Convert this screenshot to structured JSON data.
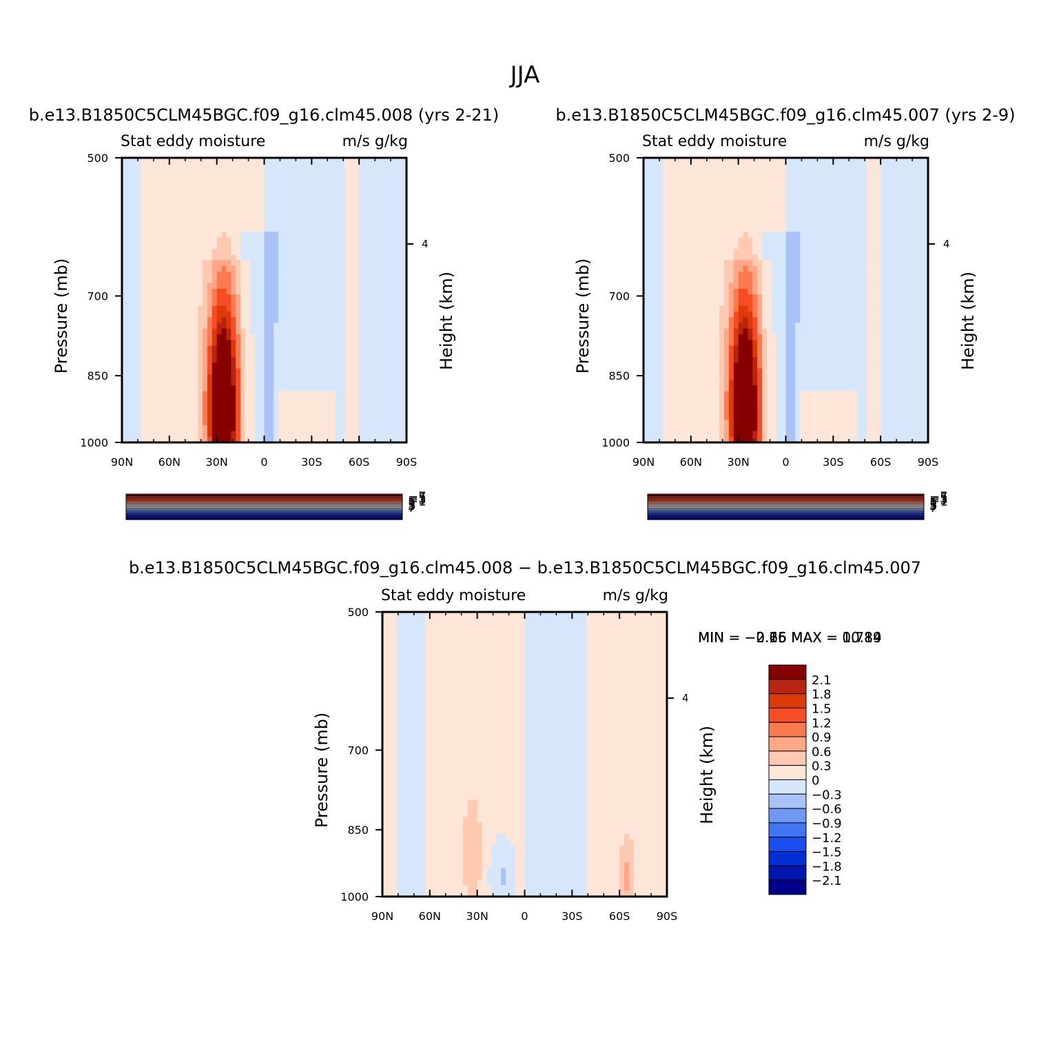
{
  "page_title": "JJA",
  "colors": {
    "diverging_palette": [
      "#00008b",
      "#0016b0",
      "#0030d4",
      "#1a4ef0",
      "#3f74f2",
      "#7099f4",
      "#a9c3f8",
      "#d7e7fb",
      "#fde6d8",
      "#fdcab1",
      "#fca788",
      "#fb7a50",
      "#f64d26",
      "#dd3a0a",
      "#b82410",
      "#870000"
    ]
  },
  "chart_data": [
    {
      "type": "heatmap",
      "title": "b.e13.B1850C5CLM45BGC.f09_g16.clm45.008 (yrs 2-21)",
      "subtitle_left": "Stat eddy moisture",
      "subtitle_right": "m/s g/kg",
      "ylabel": "Pressure (mb)",
      "ylabel_right": "Height (km)",
      "x_ticks": [
        "90N",
        "60N",
        "30N",
        "0",
        "30S",
        "60S",
        "90S"
      ],
      "y_ticks": [
        "500",
        "700",
        "850",
        "1000"
      ],
      "right_ticks": [
        "4"
      ],
      "ylim": [
        1000,
        500
      ],
      "min_text": "MIN =   −2.26   MAX =   10.89",
      "min": -2.26,
      "max": 10.89,
      "colorbar_labels": [
        "−7",
        "−5",
        "−3",
        "−1",
        "1",
        "3",
        "5",
        "7"
      ],
      "levels": [
        -7,
        -6,
        -5,
        -4,
        -3,
        -2,
        -1,
        0,
        1,
        2,
        3,
        4,
        5,
        6,
        7
      ],
      "core": {
        "lat_center": 26,
        "max_value": 10.89,
        "pressure_peak": 920
      }
    },
    {
      "type": "heatmap",
      "title": "b.e13.B1850C5CLM45BGC.f09_g16.clm45.007 (yrs 2-9)",
      "subtitle_left": "Stat eddy moisture",
      "subtitle_right": "m/s g/kg",
      "ylabel": "Pressure (mb)",
      "ylabel_right": "Height (km)",
      "x_ticks": [
        "90N",
        "60N",
        "30N",
        "0",
        "30S",
        "60S",
        "90S"
      ],
      "y_ticks": [
        "500",
        "700",
        "850",
        "1000"
      ],
      "right_ticks": [
        "4"
      ],
      "ylim": [
        1000,
        500
      ],
      "min_text": "MIN =   −2.16   MAX =   10.84",
      "min": -2.16,
      "max": 10.84,
      "colorbar_labels": [
        "−7",
        "−5",
        "−3",
        "−1",
        "1",
        "3",
        "5",
        "7"
      ],
      "levels": [
        -7,
        -6,
        -5,
        -4,
        -3,
        -2,
        -1,
        0,
        1,
        2,
        3,
        4,
        5,
        6,
        7
      ],
      "core": {
        "lat_center": 26,
        "max_value": 10.84,
        "pressure_peak": 920
      }
    },
    {
      "type": "heatmap",
      "title": "b.e13.B1850C5CLM45BGC.f09_g16.clm45.008 − b.e13.B1850C5CLM45BGC.f09_g16.clm45.007",
      "subtitle_left": "Stat eddy moisture",
      "subtitle_right": "m/s g/kg",
      "ylabel": "Pressure (mb)",
      "ylabel_right": "Height (km)",
      "x_ticks": [
        "90N",
        "60N",
        "30N",
        "0",
        "30S",
        "60S",
        "90S"
      ],
      "y_ticks": [
        "500",
        "700",
        "850",
        "1000"
      ],
      "right_ticks": [
        "4"
      ],
      "ylim": [
        1000,
        500
      ],
      "min_text": "MIN =   −0.65   MAX =    0.71",
      "min": -0.65,
      "max": 0.71,
      "colorbar_labels": [
        "2.1",
        "1.8",
        "1.5",
        "1.2",
        "0.9",
        "0.6",
        "0.3",
        "0",
        "−0.3",
        "−0.6",
        "−0.9",
        "−1.2",
        "−1.5",
        "−1.8",
        "−2.1"
      ],
      "levels": [
        -2.1,
        -1.8,
        -1.5,
        -1.2,
        -0.9,
        -0.6,
        -0.3,
        0,
        0.3,
        0.6,
        0.9,
        1.2,
        1.5,
        1.8,
        2.1
      ]
    }
  ]
}
